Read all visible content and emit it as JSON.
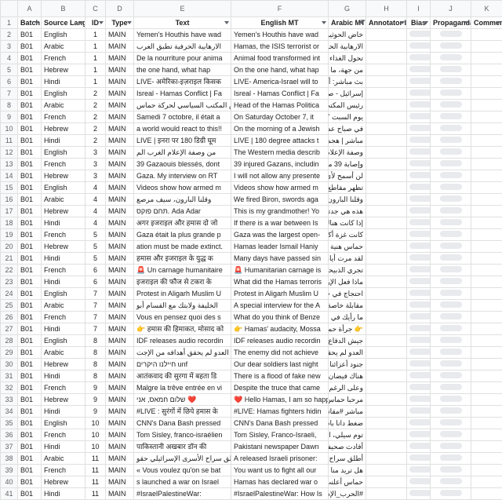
{
  "columns_letters": [
    "A",
    "B",
    "C",
    "D",
    "E",
    "F",
    "G",
    "H",
    "I",
    "J",
    "K"
  ],
  "headers": {
    "a": "Batch",
    "b": "Source Language",
    "c": "ID",
    "d": "Type",
    "e": "Text",
    "f": "English MT",
    "g": "Arabic MT",
    "h": "Annotator ID",
    "i": "Bias",
    "j": "Propaganda",
    "k": "Comments"
  },
  "rows": [
    {
      "n": 2,
      "a": "B01",
      "b": "English",
      "c": 1,
      "d": "MAIN",
      "e": "Yemen's Houthis have wad",
      "f": "Yemen's Houthis have wad",
      "g": "خاض الحوثيون في اليمن الحرب"
    },
    {
      "n": 3,
      "a": "B01",
      "b": "Arabic",
      "c": 1,
      "d": "MAIN",
      "e": "الارهابية الحرفية تطبق العرب",
      "f": "Hamas, the ISIS terrorist or",
      "g": "الارهابية الحرفية تطبق العرب"
    },
    {
      "n": 4,
      "a": "B01",
      "b": "French",
      "c": 1,
      "d": "MAIN",
      "e": "De la nourriture pour anima",
      "f": "Animal food transformed int",
      "g": "تحول الغذاء الحيواني إلى طعام"
    },
    {
      "n": 5,
      "a": "B01",
      "b": "Hebrew",
      "c": 1,
      "d": "MAIN",
      "e": "the one hand, what hap",
      "f": "On the one hand, what hap",
      "g": "من جهة، ما حدث يشتت قلبي ويم"
    },
    {
      "n": 6,
      "a": "B01",
      "b": "Hindi",
      "c": 1,
      "d": "MAIN",
      "e": "LIVE- अमेरिका-इज़राइल किसक",
      "f": "LIVE- America-Israel will to",
      "g": "بث مباشر: أمريكا - إسرائيل ستتجه"
    },
    {
      "n": 7,
      "a": "B01",
      "b": "English",
      "c": 2,
      "d": "MAIN",
      "e": "Isreal - Hamas Conflict | Fa",
      "f": "Isreal - Hamas Conflict | Fa",
      "g": "إسرائيل - صراع حماس | يقوم"
    },
    {
      "n": 8,
      "a": "B01",
      "b": "Arabic",
      "c": 2,
      "d": "MAIN",
      "e": "رئيس المكتب السياسي لحركة حماس",
      "f": "Head of the Hamas Politica",
      "g": "رئيس المكتب السياسي لحركة حماس"
    },
    {
      "n": 9,
      "a": "B01",
      "b": "French",
      "c": 2,
      "d": "MAIN",
      "e": "Samedi 7 octobre, il était a",
      "f": "On Saturday October 7, it",
      "g": "يوم السبت 7 أكتوبر كانت الساعة"
    },
    {
      "n": 10,
      "a": "B01",
      "b": "Hebrew",
      "c": 2,
      "d": "MAIN",
      "e": "a world would react to this!!",
      "f": "On the morning of a Jewish",
      "g": "في صباح عطلة يهودية في إسرائيل"
    },
    {
      "n": 11,
      "a": "B01",
      "b": "Hindi",
      "c": 2,
      "d": "MAIN",
      "e": "LIVE | इनरा पर 180 डिग्री घूम",
      "f": "LIVE | 180 degree attacks t",
      "g": "مباشر | هجمات 180 درجة على"
    },
    {
      "n": 12,
      "a": "B01",
      "b": "English",
      "c": 3,
      "d": "MAIN",
      "e": "من وصفة الإعلام الغرب الم",
      "f": "The Western media describ",
      "g": "وصفة الإعلام الغربي الموضوعي"
    },
    {
      "n": 13,
      "a": "B01",
      "b": "French",
      "c": 3,
      "d": "MAIN",
      "e": "39 Gazaouis blessés, dont",
      "f": "39 injured Gazans, includin",
      "g": "وإصابة 39 مصاباً من سكان غزة"
    },
    {
      "n": 14,
      "a": "B01",
      "b": "Hebrew",
      "c": 3,
      "d": "MAIN",
      "e": "Gaza. My interview on RT",
      "f": "I will not allow any presente",
      "g": "لن أسمح لأي موقع بجري مناقشتي"
    },
    {
      "n": 15,
      "a": "B01",
      "b": "English",
      "c": 4,
      "d": "MAIN",
      "e": "Videos show how armed m",
      "f": "Videos show how armed m",
      "g": "تظهر مقاطع فيديو كيف اقتحمت عنا"
    },
    {
      "n": 16,
      "a": "B01",
      "b": "Arabic",
      "c": 4,
      "d": "MAIN",
      "e": "وقلنا البارون، سيف مرصع",
      "f": "We fired Biron, swords aga",
      "g": "وقلنا البارون، سيف مرصع"
    },
    {
      "n": 17,
      "a": "B01",
      "b": "Hebrew",
      "c": 4,
      "d": "MAIN",
      "e": "תחם פוקס. Ada Adar",
      "f": "This is my grandmother! Yo",
      "g": "هذه هي جدتي! لم تخطف من قبل"
    },
    {
      "n": 18,
      "a": "B01",
      "b": "Hindi",
      "c": 4,
      "d": "MAIN",
      "e": "अगर इजराइल और हमास दो जो",
      "f": "If there is a war between Is",
      "g": "إذا كانت هناك حرب بين إسرائيل وحم"
    },
    {
      "n": 19,
      "a": "B01",
      "b": "French",
      "c": 5,
      "d": "MAIN",
      "e": "Gaza était la plus grande p",
      "f": "Gaza was the largest open-",
      "g": "كانت غزة أكبر سجن مفتوح في العال"
    },
    {
      "n": 20,
      "a": "B01",
      "b": "Hebrew",
      "c": 5,
      "d": "MAIN",
      "e": "ation must be made extinct.",
      "f": "Hamas leader Ismail Haniy",
      "g": "حماس هنية يختبئ مثل جرذ"
    },
    {
      "n": 21,
      "a": "B01",
      "b": "Hindi",
      "c": 5,
      "d": "MAIN",
      "e": "हमास और इजराइल के युद्ध क",
      "f": "Many days have passed sin",
      "g": "لقد مرت أيام على الحرب بين حم"
    },
    {
      "n": 22,
      "a": "B01",
      "b": "French",
      "c": 6,
      "d": "MAIN",
      "e": "🚨 Un carnage humanitaire",
      "f": "🚨 Humanitarian carnage is",
      "g": "تجري الذبيحة الإنسانية في هذا"
    },
    {
      "n": 23,
      "a": "B01",
      "b": "Hindi",
      "c": 6,
      "d": "MAIN",
      "e": "इजराइल की फौज से टकरा के",
      "f": "What did the Hamas terroris",
      "g": "ماذا فعل الإرهابي حماس حالت با"
    },
    {
      "n": 24,
      "a": "B01",
      "b": "English",
      "c": 7,
      "d": "MAIN",
      "e": "Protest in Aligarh Muslim U",
      "f": "Protest in Aligarh Muslim U",
      "g": "احتجاج في جامعة عليكرة الإ"
    },
    {
      "n": 25,
      "a": "B01",
      "b": "Arabic",
      "c": 7,
      "d": "MAIN",
      "e": "الخليفة ولابتك مع القسام أبو",
      "f": "A special interview for the A",
      "g": "مقابلة خاصة لقناة الخليفة مع القسام أبو"
    },
    {
      "n": 26,
      "a": "B01",
      "b": "French",
      "c": 7,
      "d": "MAIN",
      "e": "Vous en pensez quoi des s",
      "f": "What do you think of Benze",
      "g": "ما رأيك في تغريدات بنزيما = أحصل"
    },
    {
      "n": 27,
      "a": "B01",
      "b": "Hindi",
      "c": 7,
      "d": "MAIN",
      "e": "👉 हमास की हिमाकत, मोसाद को",
      "f": "👉 Hamas' audacity, Mossa",
      "g": "👉 جرأة حماس ← قتل الموساد"
    },
    {
      "n": 28,
      "a": "B01",
      "b": "English",
      "c": 8,
      "d": "MAIN",
      "e": "IDF releases audio recordin",
      "f": "IDF releases audio recordin",
      "g": "جيش الدفاع الإسرائيلي نشر تسجيلات"
    },
    {
      "n": 29,
      "a": "B01",
      "b": "Arabic",
      "c": 8,
      "d": "MAIN",
      "e": "العدو لم يحقق أهدافه من الإجت",
      "f": "The enemy did not achieve",
      "g": "العدو لم يحقق أهدافه من الإجتياح"
    },
    {
      "n": 30,
      "a": "B01",
      "b": "Hebrew",
      "c": 8,
      "d": "MAIN",
      "e": "חיילנו היקרים unf",
      "f": "Our dear soldiers last night",
      "g": "جنود أعزائنا الليلة الماضية مع دخول"
    },
    {
      "n": 31,
      "a": "B01",
      "b": "Hindi",
      "c": 8,
      "d": "MAIN",
      "e": "आतंकवाद की सुरगा में बहता डि",
      "f": "There is a flood of fake new",
      "g": "هناك فيضان من الأخبار الكاذبة على"
    },
    {
      "n": 32,
      "a": "B01",
      "b": "French",
      "c": 9,
      "d": "MAIN",
      "e": "Malgre la trêve entrée en vi",
      "f": "Despite the truce that came",
      "g": "وعلى الرغم من الهدنة التي بدأت يوم"
    },
    {
      "n": 33,
      "a": "B01",
      "b": "Hebrew",
      "c": 9,
      "d": "MAIN",
      "e": "שלום חמאס, אני ❤️",
      "f": "❤️ Hello Hamas, I am so happ",
      "g": "مرحبا حماس، أنا سعيد بلقائك سعيدة جد"
    },
    {
      "n": 34,
      "a": "B01",
      "b": "Hindi",
      "c": 9,
      "d": "MAIN",
      "e": "#LIVE : सुरंगों में छिपे हमास के",
      "f": "#LIVE: Hamas fighters hidin",
      "g": "مباشر #مقاتلو حماس يختبئون في"
    },
    {
      "n": 35,
      "a": "B01",
      "b": "English",
      "c": 10,
      "d": "MAIN",
      "e": "CNN's Dana Bash pressed",
      "f": "CNN's Dana Bash pressed",
      "g": "ضغط دانا باش، مراسل شبكة سي إن"
    },
    {
      "n": 36,
      "a": "B01",
      "b": "French",
      "c": 10,
      "d": "MAIN",
      "e": "Tom Sisley, franco-israélien",
      "f": "Tom Sisley, Franco-Israeli,",
      "g": "توم سيلي، الفرنسي الإسرائيلي، البالغ"
    },
    {
      "n": 37,
      "a": "B01",
      "b": "Hindi",
      "c": 10,
      "d": "MAIN",
      "e": "पाकिस्तानी अखबार डॉन की",
      "f": "Pakistani newspaper Dawn",
      "g": "أفادت صحيفة دون الباكستانية أن"
    },
    {
      "n": 38,
      "a": "B01",
      "b": "Arabic",
      "c": 11,
      "d": "MAIN",
      "e": "أطلق سراح الأسرى الإسرائيلي حقو",
      "f": "A released Israeli prisoner:",
      "g": "أطلق سراح الأسرى الإسرائيلي حقو"
    },
    {
      "n": 39,
      "a": "B01",
      "b": "French",
      "c": 11,
      "d": "MAIN",
      "e": "« Vous voulez qu'on se bat",
      "f": "You want us to fight all our",
      "g": "هل تريد منا أن نحارب أعدائنا كلهم يا"
    },
    {
      "n": 40,
      "a": "B01",
      "b": "Hebrew",
      "c": 11,
      "d": "MAIN",
      "e": "s launched a war on Israel",
      "f": "Hamas has declared war o",
      "g": "حماس أعلنت الحرب على إسرائيل! الد"
    },
    {
      "n": 41,
      "a": "B01",
      "b": "Hindi",
      "c": 11,
      "d": "MAIN",
      "e": "#IsraelPalestineWar:",
      "f": "#IsraelPalestineWar: How Is",
      "g": "#الحرب_الإسرائيلية_الفلسطينية"
    }
  ]
}
